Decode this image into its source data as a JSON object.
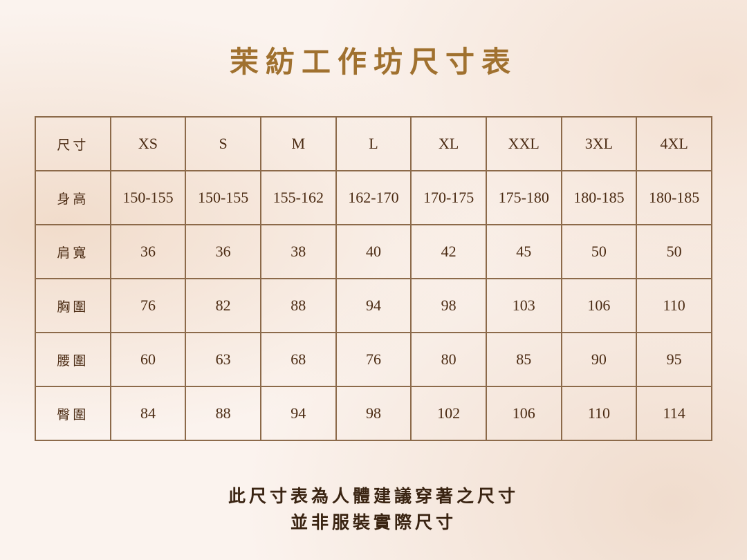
{
  "title": "茉紡工作坊尺寸表",
  "table": {
    "header": [
      "尺寸",
      "XS",
      "S",
      "M",
      "L",
      "XL",
      "XXL",
      "3XL",
      "4XL"
    ],
    "rows": [
      [
        "身高",
        "150-155",
        "150-155",
        "155-162",
        "162-170",
        "170-175",
        "175-180",
        "180-185",
        "180-185"
      ],
      [
        "肩寬",
        "36",
        "36",
        "38",
        "40",
        "42",
        "45",
        "50",
        "50"
      ],
      [
        "胸圍",
        "76",
        "82",
        "88",
        "94",
        "98",
        "103",
        "106",
        "110"
      ],
      [
        "腰圍",
        "60",
        "63",
        "68",
        "76",
        "80",
        "85",
        "90",
        "95"
      ],
      [
        "臀圍",
        "84",
        "88",
        "94",
        "98",
        "102",
        "106",
        "110",
        "114"
      ]
    ]
  },
  "note": [
    "此尺寸表為人體建議穿著之尺寸",
    "並非服裝實際尺寸"
  ],
  "colors": {
    "title": "#a0712f",
    "text": "#4a2a12",
    "border": "#8c6a4a",
    "background": "#fbf3ee"
  }
}
